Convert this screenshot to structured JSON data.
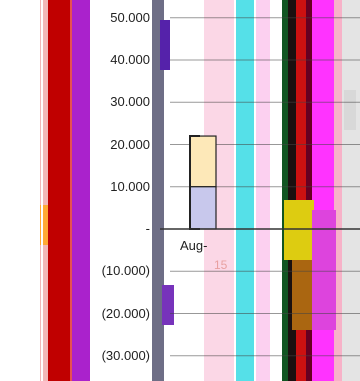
{
  "chart_data": {
    "type": "bar",
    "title": "",
    "xlabel": "",
    "ylabel": "",
    "ylim": [
      -35000,
      55000
    ],
    "y_ticks": [
      {
        "value": 50000,
        "label": "50.000"
      },
      {
        "value": 40000,
        "label": "40.000"
      },
      {
        "value": 30000,
        "label": "30.000"
      },
      {
        "value": 20000,
        "label": "20.000"
      },
      {
        "value": 10000,
        "label": "10.000"
      },
      {
        "value": 0,
        "label": "-"
      },
      {
        "value": -10000,
        "label": "(10.000)"
      },
      {
        "value": -20000,
        "label": "(20.000)"
      },
      {
        "value": -30000,
        "label": "(30.000)"
      }
    ],
    "categories": [
      "Aug-"
    ],
    "category_fragment": "15",
    "series": [
      {
        "values": [
          22000
        ],
        "color": "#fde8b8"
      },
      {
        "values": [
          10000
        ],
        "color": "#c8c8ec"
      }
    ],
    "grid": true,
    "colors": {
      "accent_red": "#c00000",
      "accent_purple": "#aa22cc",
      "accent_cyan": "#55e0e8",
      "accent_magenta": "#ff33ff",
      "gridline": "#333333"
    }
  }
}
